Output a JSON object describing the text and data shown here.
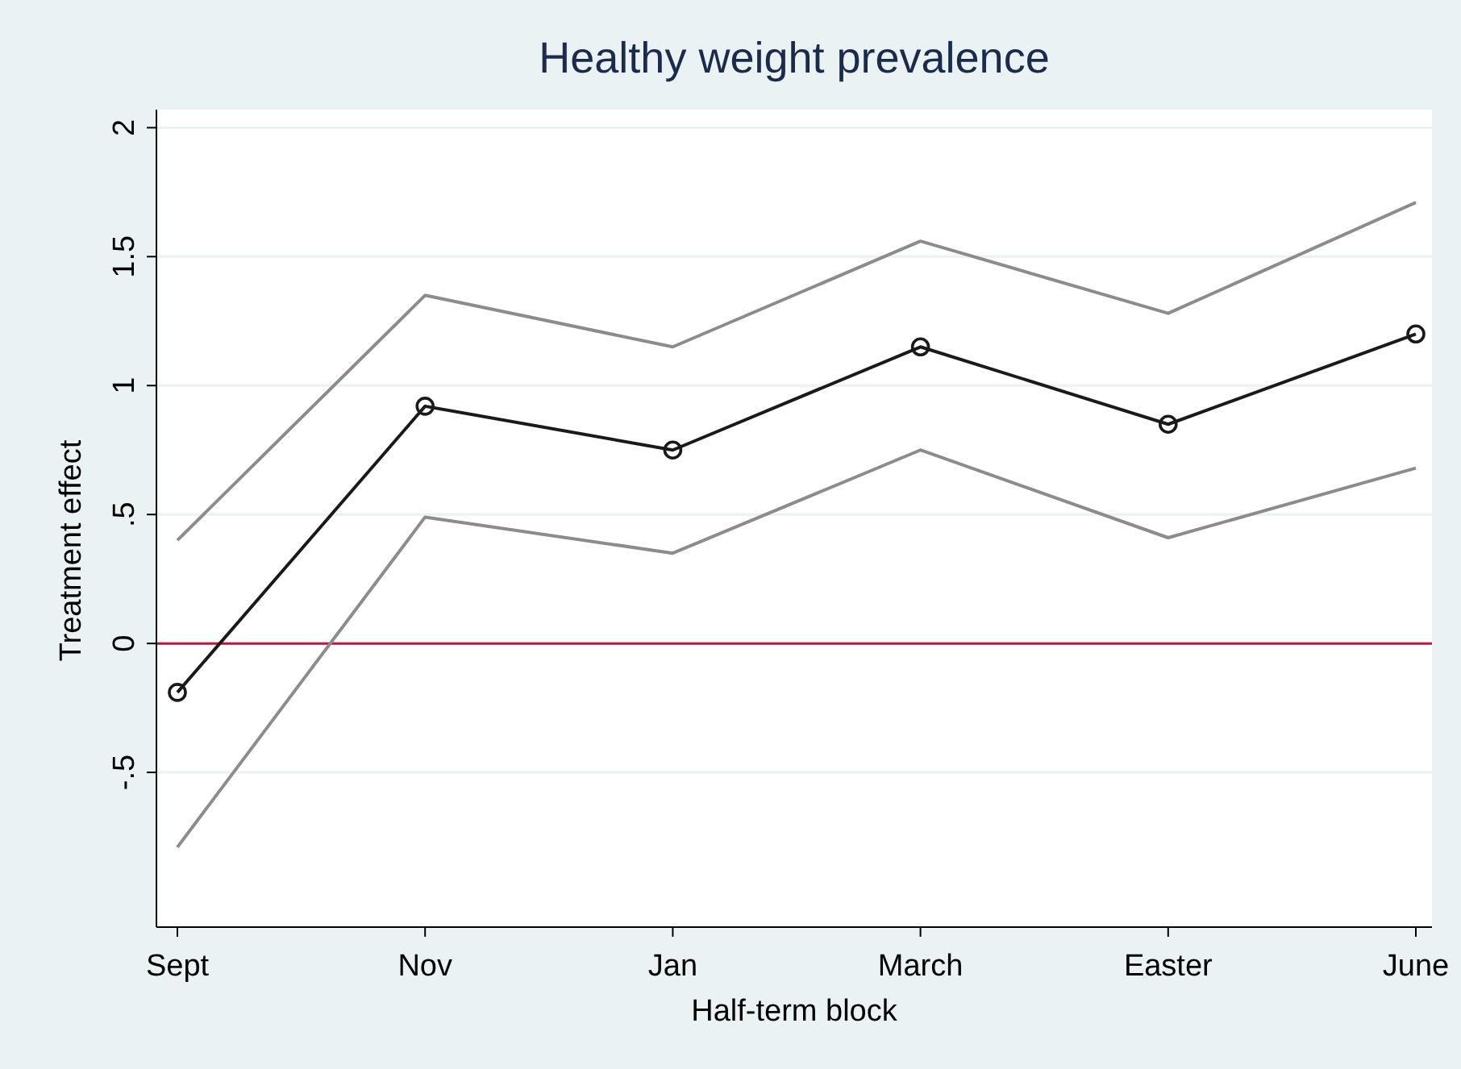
{
  "chart_data": {
    "type": "line",
    "title": "Healthy weight prevalence",
    "xlabel": "Half-term block",
    "ylabel": "Treatment effect",
    "categories": [
      "Sept",
      "Nov",
      "Jan",
      "March",
      "Easter",
      "June"
    ],
    "series": [
      {
        "color": "#8c8c8c",
        "values": [
          0.4,
          1.35,
          1.15,
          1.56,
          1.28,
          1.71
        ],
        "marker": "none"
      },
      {
        "color": "#8c8c8c",
        "values": [
          -0.79,
          0.49,
          0.35,
          0.75,
          0.41,
          0.68
        ],
        "marker": "none"
      },
      {
        "color": "#1a1a1a",
        "values": [
          -0.19,
          0.92,
          0.75,
          1.15,
          0.85,
          1.2
        ],
        "marker": "circle"
      }
    ],
    "ylim": [
      -1.1,
      2.07
    ],
    "yticks": [
      {
        "value": -0.5,
        "label": "-.5"
      },
      0,
      {
        "value": 0.5,
        "label": ".5"
      },
      1,
      1.5,
      2
    ],
    "grid": "y",
    "ref_lines": [
      {
        "axis": "y",
        "value": 0,
        "color": "#c0143c"
      }
    ]
  }
}
